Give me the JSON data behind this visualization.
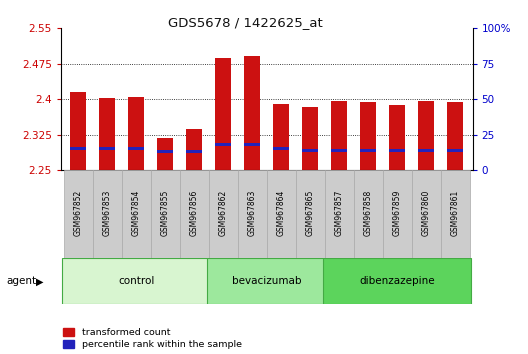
{
  "title": "GDS5678 / 1422625_at",
  "samples": [
    "GSM967852",
    "GSM967853",
    "GSM967854",
    "GSM967855",
    "GSM967856",
    "GSM967862",
    "GSM967863",
    "GSM967864",
    "GSM967865",
    "GSM967857",
    "GSM967858",
    "GSM967859",
    "GSM967860",
    "GSM967861"
  ],
  "red_values": [
    2.415,
    2.403,
    2.404,
    2.318,
    2.336,
    2.487,
    2.491,
    2.39,
    2.384,
    2.395,
    2.393,
    2.387,
    2.396,
    2.393
  ],
  "blue_values_pct": [
    15,
    15,
    15,
    13,
    13,
    18,
    18,
    15,
    14,
    14,
    14,
    14,
    14,
    14
  ],
  "y_min": 2.25,
  "y_max": 2.55,
  "y_ticks": [
    2.25,
    2.325,
    2.4,
    2.475,
    2.55
  ],
  "y_right_ticks": [
    0,
    25,
    50,
    75,
    100
  ],
  "groups": [
    {
      "label": "control",
      "start": 0,
      "end": 5,
      "color": "#d8f5d0"
    },
    {
      "label": "bevacizumab",
      "start": 5,
      "end": 9,
      "color": "#9de89d"
    },
    {
      "label": "dibenzazepine",
      "start": 9,
      "end": 14,
      "color": "#5cd45c"
    }
  ],
  "agent_label": "agent",
  "bar_color": "#cc1111",
  "blue_color": "#2222bb",
  "bar_width": 0.55,
  "title_color": "#111111",
  "left_tick_color": "#cc0000",
  "right_tick_color": "#0000cc",
  "legend_red_label": "transformed count",
  "legend_blue_label": "percentile rank within the sample",
  "blue_bar_height": 0.006,
  "background_color": "#ffffff"
}
